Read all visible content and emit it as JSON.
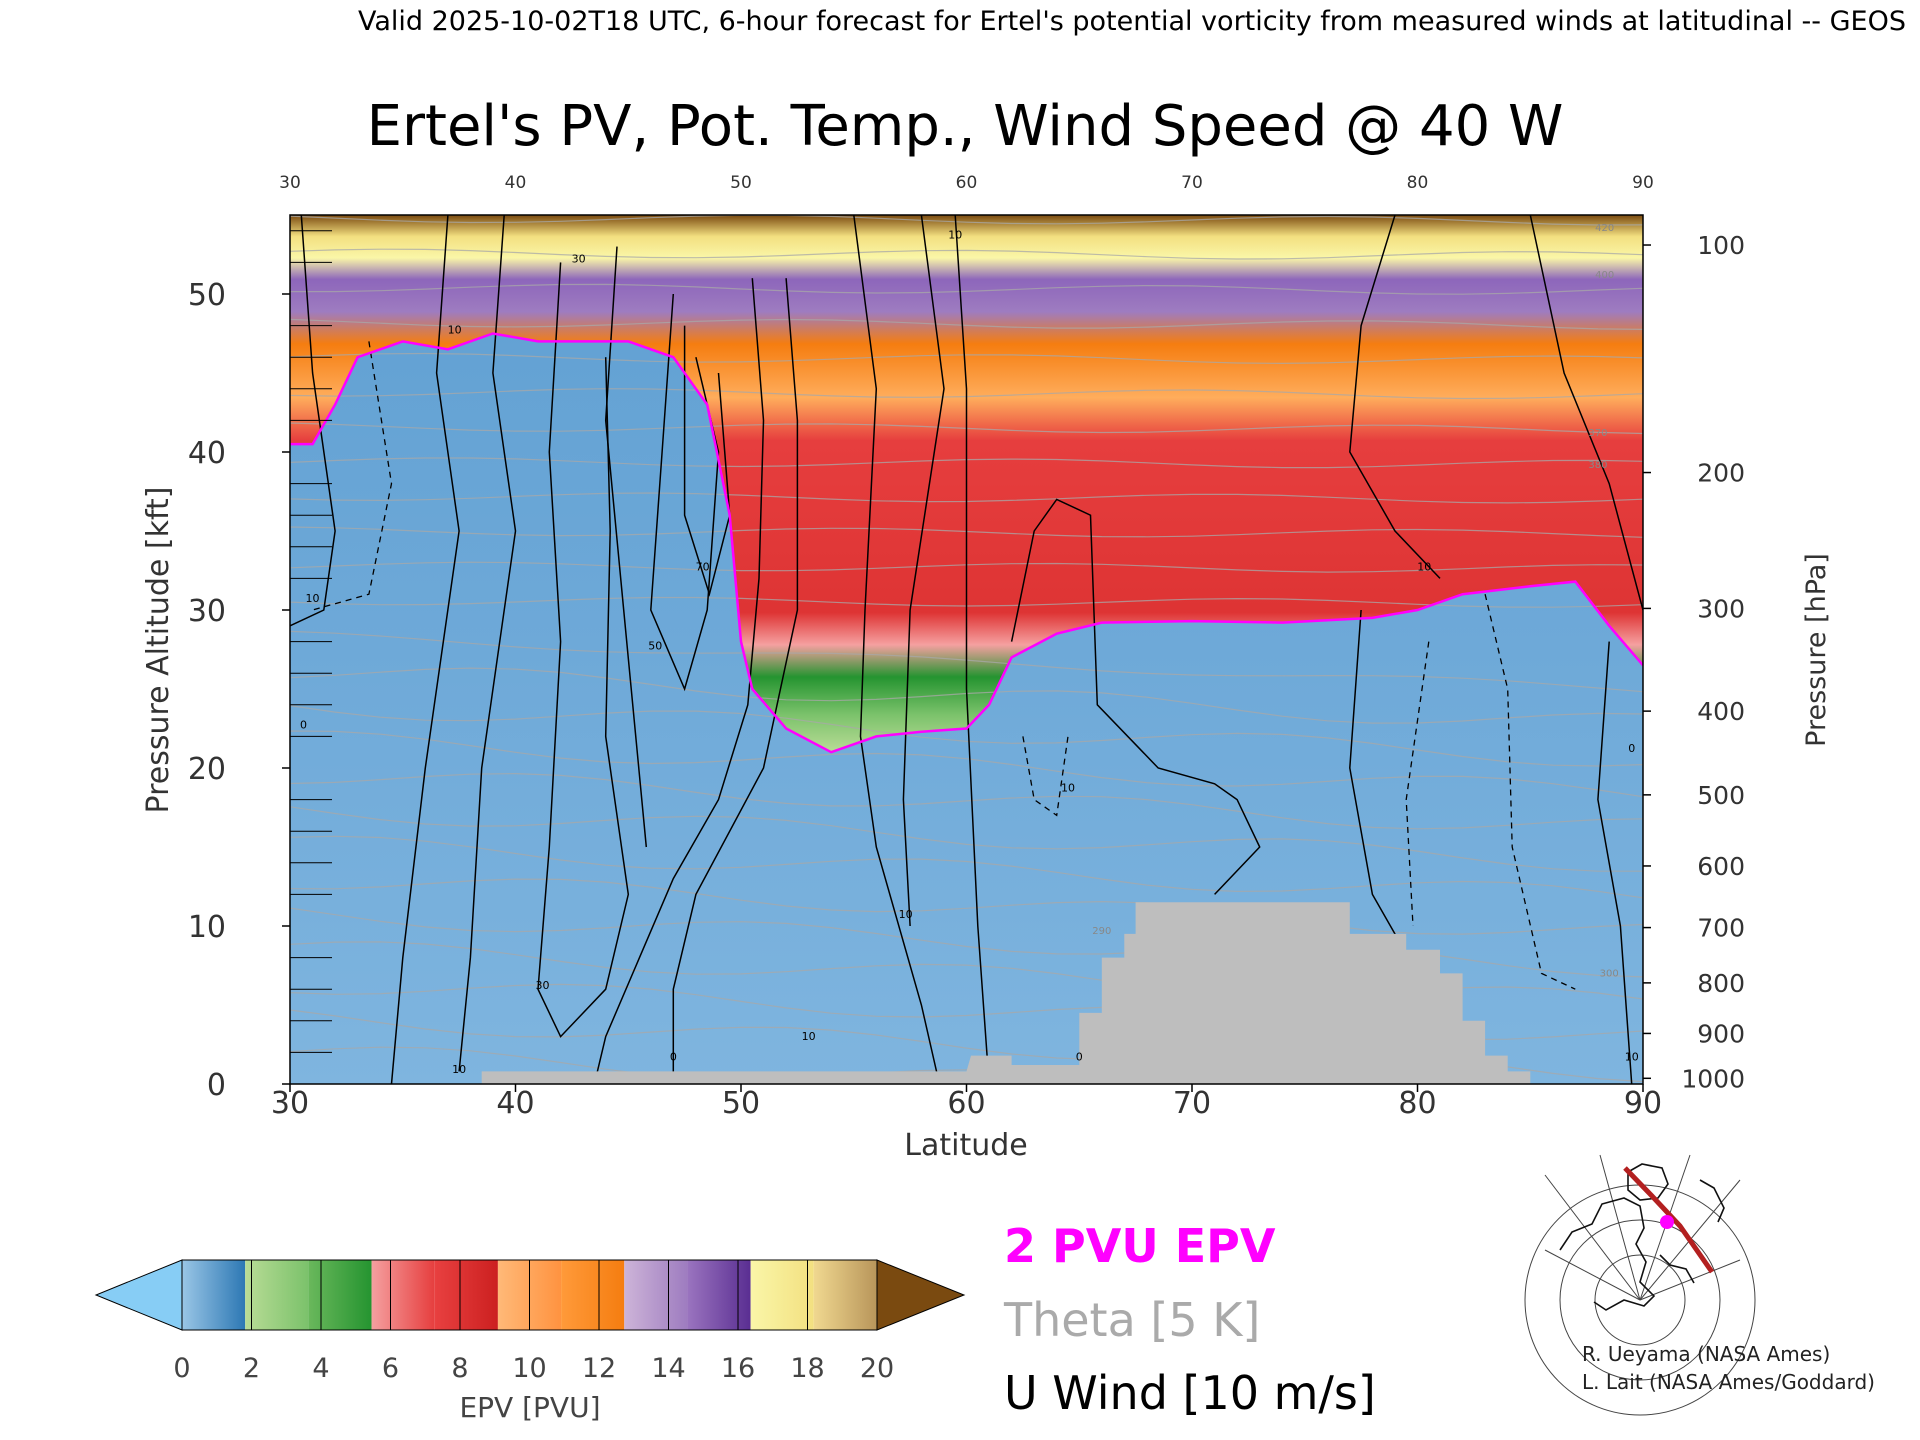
{
  "header": {
    "valid_line": "Valid 2025-10-02T18 UTC, 6-hour forecast for Ertel's potential vorticity from measured winds at latitudinal -- GEOS"
  },
  "chart_data": {
    "type": "heatmap",
    "title": "Ertel's PV, Pot. Temp., Wind Speed @ 40 W",
    "xlabel": "Latitude",
    "ylabel_left": "Pressure Altitude [kft]",
    "ylabel_right": "Pressure [hPa]",
    "xlim": [
      30,
      90
    ],
    "ylim_kft": [
      0,
      55
    ],
    "x_ticks": [
      "30",
      "40",
      "50",
      "60",
      "70",
      "80",
      "90"
    ],
    "x_ticks_top": [
      "30",
      "40",
      "50",
      "60",
      "70",
      "80",
      "90"
    ],
    "y_ticks_left": [
      {
        "kft": 0,
        "label": "0"
      },
      {
        "kft": 10,
        "label": "10"
      },
      {
        "kft": 20,
        "label": "20"
      },
      {
        "kft": 30,
        "label": "30"
      },
      {
        "kft": 40,
        "label": "40"
      },
      {
        "kft": 50,
        "label": "50"
      }
    ],
    "y_ticks_right": [
      {
        "kft": 0.36,
        "label": "1000"
      },
      {
        "kft": 3.2,
        "label": "900"
      },
      {
        "kft": 6.4,
        "label": "800"
      },
      {
        "kft": 9.9,
        "label": "700"
      },
      {
        "kft": 13.8,
        "label": "600"
      },
      {
        "kft": 18.3,
        "label": "500"
      },
      {
        "kft": 23.6,
        "label": "400"
      },
      {
        "kft": 30.1,
        "label": "300"
      },
      {
        "kft": 38.7,
        "label": "200"
      },
      {
        "kft": 53.1,
        "label": "100"
      }
    ],
    "dynamic_tropopause_2pvu": [
      {
        "lat": 30,
        "kft": 40.5
      },
      {
        "lat": 31,
        "kft": 40.5
      },
      {
        "lat": 32,
        "kft": 43
      },
      {
        "lat": 33,
        "kft": 46
      },
      {
        "lat": 35,
        "kft": 47
      },
      {
        "lat": 37,
        "kft": 46.5
      },
      {
        "lat": 39,
        "kft": 47.5
      },
      {
        "lat": 41,
        "kft": 47
      },
      {
        "lat": 43,
        "kft": 47
      },
      {
        "lat": 45,
        "kft": 47
      },
      {
        "lat": 47,
        "kft": 46
      },
      {
        "lat": 48.5,
        "kft": 43
      },
      {
        "lat": 49.5,
        "kft": 36
      },
      {
        "lat": 50,
        "kft": 28
      },
      {
        "lat": 50.5,
        "kft": 25
      },
      {
        "lat": 52,
        "kft": 22.5
      },
      {
        "lat": 54,
        "kft": 21
      },
      {
        "lat": 56,
        "kft": 22
      },
      {
        "lat": 58,
        "kft": 22.3
      },
      {
        "lat": 60,
        "kft": 22.5
      },
      {
        "lat": 61,
        "kft": 24
      },
      {
        "lat": 62,
        "kft": 27
      },
      {
        "lat": 64,
        "kft": 28.5
      },
      {
        "lat": 66,
        "kft": 29.2
      },
      {
        "lat": 70,
        "kft": 29.3
      },
      {
        "lat": 74,
        "kft": 29.2
      },
      {
        "lat": 78,
        "kft": 29.5
      },
      {
        "lat": 80,
        "kft": 30
      },
      {
        "lat": 82,
        "kft": 31
      },
      {
        "lat": 85,
        "kft": 31.5
      },
      {
        "lat": 87,
        "kft": 31.8
      },
      {
        "lat": 88.5,
        "kft": 29
      },
      {
        "lat": 90,
        "kft": 26.5
      }
    ],
    "terrain": [
      {
        "lat": 38.5,
        "kft": 0.8
      },
      {
        "lat": 60,
        "kft": 0.8
      },
      {
        "lat": 60.2,
        "kft": 1.8
      },
      {
        "lat": 62,
        "kft": 1.8
      },
      {
        "lat": 62,
        "kft": 1.2
      },
      {
        "lat": 65,
        "kft": 1.2
      },
      {
        "lat": 65,
        "kft": 4.5
      },
      {
        "lat": 66,
        "kft": 4.5
      },
      {
        "lat": 66,
        "kft": 8
      },
      {
        "lat": 67,
        "kft": 8
      },
      {
        "lat": 67,
        "kft": 9.5
      },
      {
        "lat": 67.5,
        "kft": 9.5
      },
      {
        "lat": 67.5,
        "kft": 11.5
      },
      {
        "lat": 77,
        "kft": 11.5
      },
      {
        "lat": 77,
        "kft": 9.5
      },
      {
        "lat": 79.5,
        "kft": 9.5
      },
      {
        "lat": 79.5,
        "kft": 8.5
      },
      {
        "lat": 81,
        "kft": 8.5
      },
      {
        "lat": 81,
        "kft": 7
      },
      {
        "lat": 82,
        "kft": 7
      },
      {
        "lat": 82,
        "kft": 4
      },
      {
        "lat": 83,
        "kft": 4
      },
      {
        "lat": 83,
        "kft": 1.8
      },
      {
        "lat": 84,
        "kft": 1.8
      },
      {
        "lat": 84,
        "kft": 0.8
      },
      {
        "lat": 85,
        "kft": 0.8
      }
    ],
    "u_wind_contour_labels": [
      {
        "lat": 31,
        "kft": 30.5,
        "text": "10"
      },
      {
        "lat": 30.6,
        "kft": 22.5,
        "text": "0"
      },
      {
        "lat": 37.3,
        "kft": 47.5,
        "text": "10"
      },
      {
        "lat": 42.8,
        "kft": 52,
        "text": "30"
      },
      {
        "lat": 48.3,
        "kft": 32.5,
        "text": "70"
      },
      {
        "lat": 46.2,
        "kft": 27.5,
        "text": "50"
      },
      {
        "lat": 41.2,
        "kft": 6,
        "text": "30"
      },
      {
        "lat": 37.5,
        "kft": 0.7,
        "text": "10"
      },
      {
        "lat": 47,
        "kft": 1.5,
        "text": "0"
      },
      {
        "lat": 53,
        "kft": 2.8,
        "text": "10"
      },
      {
        "lat": 57.3,
        "kft": 10.5,
        "text": "10"
      },
      {
        "lat": 59.5,
        "kft": 53.5,
        "text": "10"
      },
      {
        "lat": 64.5,
        "kft": 18.5,
        "text": "10"
      },
      {
        "lat": 65,
        "kft": 1.5,
        "text": "0"
      },
      {
        "lat": 80.3,
        "kft": 32.5,
        "text": "10"
      },
      {
        "lat": 79,
        "kft": 55,
        "text": "0"
      },
      {
        "lat": 89.5,
        "kft": 21,
        "text": "0"
      },
      {
        "lat": 89.5,
        "kft": 1.5,
        "text": "10"
      }
    ],
    "theta_contour_labels": [
      {
        "lat": 66,
        "kft": 9.5,
        "text": "290"
      },
      {
        "lat": 88.5,
        "kft": 6.8,
        "text": "300"
      },
      {
        "lat": 88,
        "kft": 41,
        "text": "370"
      },
      {
        "lat": 88,
        "kft": 39,
        "text": "380"
      },
      {
        "lat": 88.3,
        "kft": 51,
        "text": "400"
      },
      {
        "lat": 88.3,
        "kft": 54,
        "text": "420"
      }
    ],
    "colorbar": {
      "label": "EPV [PVU]",
      "ticks": [
        "0",
        "2",
        "4",
        "6",
        "8",
        "10",
        "12",
        "14",
        "16",
        "18",
        "20"
      ],
      "below_color": "#87cdf5",
      "above_color": "#7a4a10",
      "segments": [
        [
          "#9ac6e6",
          "#2d78b4"
        ],
        [
          "#b9dc96",
          "#7bc26b"
        ],
        [
          "#6ab85c",
          "#259430"
        ],
        [
          "#f5a0a0",
          "#e63e3e"
        ],
        [
          "#e84040",
          "#cc2020"
        ],
        [
          "#ffb978",
          "#ff9340"
        ],
        [
          "#ff9a3a",
          "#f57d10"
        ],
        [
          "#cdb4d8",
          "#9e7cc0"
        ],
        [
          "#9a74bf",
          "#5a2e92"
        ],
        [
          "#faf6a8",
          "#f3e080"
        ],
        [
          "#f0d890",
          "#b8955a"
        ]
      ]
    },
    "legend": {
      "pv_line": "2 PVU EPV",
      "theta": "Theta [5 K]",
      "uwind": "U Wind [10 m/s]",
      "pv_color": "#ff00ff",
      "theta_color": "#aaaaaa",
      "uwind_color": "#000000"
    },
    "colors": {
      "troposphere": "#6aa8d6",
      "tropopause_line": "#ff00ff",
      "terrain": "#bebebe",
      "theta_lines": "#a8a8a8"
    }
  },
  "credits": {
    "line1": "R. Ueyama (NASA Ames)",
    "line2": "L. Lait (NASA Ames/Goddard)"
  }
}
